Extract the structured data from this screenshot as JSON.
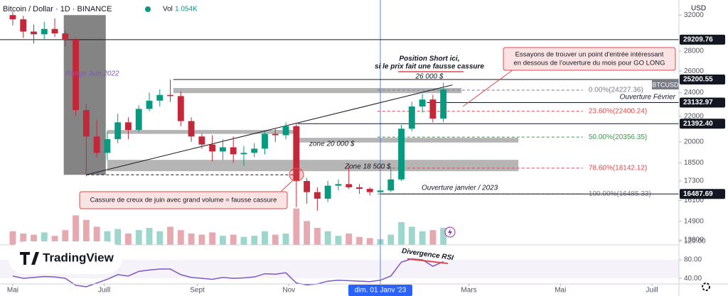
{
  "header": {
    "symbol": "Bitcoin / Dollar · 1D · BINANCE",
    "volume_label": "Vol",
    "volume_value": "1.054K",
    "currency": "USD",
    "brand": "TradingView"
  },
  "chart_data": {
    "type": "candlestick",
    "log_scale": true,
    "ylim": [
      13650,
      33840
    ],
    "yticks": [
      32000,
      28000,
      26000,
      24000,
      22000,
      20000,
      18500,
      17300,
      16100,
      14900,
      13900
    ],
    "xlim": [
      -8.5,
      444
    ],
    "xticks": [
      {
        "value": 0,
        "label": "Mai"
      },
      {
        "value": 61,
        "label": "Juill"
      },
      {
        "value": 123,
        "label": "Sept"
      },
      {
        "value": 184,
        "label": "Nov"
      },
      {
        "value": 245,
        "label": "dim. 01 Janv '23"
      },
      {
        "value": 304,
        "label": "Mars"
      },
      {
        "value": 365,
        "label": "Mai"
      },
      {
        "value": 426,
        "label": "Juill"
      }
    ],
    "crosshair_x": 245,
    "up_color": "#089981",
    "down_color": "#c2283a",
    "candles": {
      "x": [
        0,
        7,
        14,
        21,
        28,
        35,
        42,
        49,
        56,
        63,
        70,
        77,
        84,
        91,
        98,
        105,
        112,
        119,
        126,
        133,
        140,
        147,
        154,
        161,
        168,
        175,
        182,
        189,
        196,
        203,
        210,
        217,
        224,
        231,
        238,
        245,
        252,
        259,
        266,
        273,
        280,
        287
      ],
      "open": [
        32000,
        31500,
        30100,
        29800,
        30400,
        29900,
        29200,
        22500,
        20400,
        19200,
        20200,
        21500,
        20900,
        22600,
        23300,
        23800,
        23700,
        21600,
        20400,
        19800,
        19300,
        19600,
        19100,
        19200,
        19500,
        20600,
        20500,
        21200,
        17300,
        16600,
        16200,
        17000,
        17100,
        16900,
        16800,
        16600,
        16700,
        17400,
        21000,
        22800,
        23400,
        21800
      ],
      "high": [
        32400,
        31900,
        30900,
        31200,
        31600,
        30200,
        29400,
        23000,
        21700,
        20800,
        22200,
        21900,
        22900,
        24000,
        24300,
        25200,
        24100,
        21900,
        20600,
        20500,
        20200,
        20400,
        19700,
        19900,
        20800,
        21000,
        21500,
        21400,
        17500,
        16900,
        17300,
        17400,
        18300,
        17100,
        16900,
        17000,
        18200,
        21300,
        23200,
        23900,
        23800,
        24900
      ],
      "low": [
        30800,
        29400,
        28800,
        29200,
        29500,
        28500,
        22000,
        17600,
        18900,
        18700,
        19900,
        20200,
        20700,
        22400,
        22800,
        23200,
        21200,
        20000,
        19500,
        18600,
        18700,
        18500,
        18300,
        18900,
        19100,
        20000,
        20200,
        15700,
        15900,
        15500,
        16000,
        16700,
        16800,
        16500,
        16400,
        16500,
        16600,
        17300,
        20800,
        22300,
        21500,
        21500
      ],
      "close": [
        31500,
        30100,
        29800,
        30400,
        29900,
        29200,
        22500,
        20400,
        19200,
        20200,
        21500,
        20900,
        22600,
        23300,
        23800,
        23700,
        21600,
        20400,
        19800,
        19300,
        19600,
        19100,
        19200,
        19500,
        20600,
        20500,
        21200,
        17300,
        16600,
        16200,
        17000,
        17100,
        16900,
        16800,
        16600,
        16700,
        17400,
        21000,
        22800,
        23400,
        21800,
        24300
      ],
      "volume": [
        1.2,
        1.0,
        0.9,
        1.1,
        0.8,
        1.3,
        2.6,
        2.2,
        1.6,
        1.2,
        1.4,
        1.0,
        1.3,
        1.5,
        1.2,
        1.6,
        1.3,
        1.0,
        0.9,
        1.1,
        0.8,
        0.9,
        0.7,
        0.8,
        1.2,
        0.9,
        1.0,
        3.2,
        2.1,
        1.5,
        1.2,
        0.8,
        1.0,
        0.7,
        0.6,
        0.5,
        0.9,
        2.0,
        1.6,
        1.2,
        1.3,
        1.5
      ]
    },
    "volume_ylim": [
      0,
      5
    ],
    "symbol": "BTCUSD",
    "levels": [
      {
        "value": 29209.76,
        "label": "29209.76",
        "from": -8.5
      },
      {
        "value": 25200.55,
        "label": "25200.55",
        "from": 107
      },
      {
        "value": 23132.97,
        "label": "23132.97",
        "from": 276
      },
      {
        "value": 21392.4,
        "label": "21392.40",
        "from": 190
      },
      {
        "value": 16487.69,
        "label": "16487.69",
        "from": 245
      }
    ],
    "fib_x": [
      243,
      380
    ],
    "fib_levels": [
      {
        "value": 24227.36,
        "label": "0.00%(24227.36)",
        "color": "#787b86"
      },
      {
        "value": 22400.24,
        "label": "23.60%(22400.24)",
        "color": "#e04848"
      },
      {
        "value": 20356.35,
        "label": "50.00%(20356.35)",
        "color": "#3a9a4a"
      },
      {
        "value": 18142.12,
        "label": "78.60%(18142.12)",
        "color": "#e04848"
      },
      {
        "value": 16485.33,
        "label": "100.00%(16485.33)",
        "color": "#787b86"
      }
    ],
    "zones": [
      {
        "x": [
          34,
          62
        ],
        "y": [
          17700,
          32000
        ],
        "color": "rgba(80,80,80,0.7)"
      },
      {
        "x": [
          107,
          299
        ],
        "y": [
          23960,
          24420
        ],
        "color": "rgba(120,120,120,0.55)"
      },
      {
        "x": [
          63,
          190
        ],
        "y": [
          20600,
          20900
        ],
        "color": "rgba(120,120,120,0.55)"
      },
      {
        "x": [
          190,
          337
        ],
        "y": [
          19950,
          20300
        ],
        "color": "rgba(120,120,120,0.55)"
      },
      {
        "x": [
          63,
          337
        ],
        "y": [
          17940,
          18710
        ],
        "color": "rgba(120,120,120,0.55)"
      }
    ],
    "trendlines": [
      {
        "x": [
          49,
          293
        ],
        "y": [
          17700,
          24700
        ],
        "dash": false
      },
      {
        "x": [
          49,
          190
        ],
        "y": [
          17700,
          17700
        ],
        "dash": true
      }
    ],
    "annotations": [
      "Range Juin 2022",
      "zone 20 000 $",
      "Zone 18 500 $",
      "Ouverture janvier / 2023",
      "Ouverture Février",
      "Position Short ici,",
      "si le prix fait une fausse cassure",
      "26 000 $"
    ],
    "callouts": [
      "Essayons de trouver un point d'entrée intéressant",
      "en dessous de l'ouverture du mois pour GO LONG",
      "Cassure de creux de juin avec grand volume = fausse cassure"
    ],
    "rsi": {
      "values": [
        45,
        40,
        42,
        44,
        43,
        40,
        25,
        22,
        30,
        38,
        48,
        45,
        55,
        58,
        60,
        60,
        48,
        42,
        40,
        38,
        42,
        40,
        41,
        43,
        50,
        49,
        52,
        30,
        26,
        28,
        34,
        36,
        35,
        34,
        33,
        36,
        45,
        75,
        82,
        80,
        66,
        76
      ],
      "ylim": [
        28,
        112
      ],
      "yticks": [
        {
          "value": 120,
          "label": "120.00"
        },
        {
          "value": 80,
          "label": "80.00"
        },
        {
          "value": 40,
          "label": "40.00"
        }
      ],
      "color": "#7e57c2",
      "divergence": {
        "label": "Divergence RSI",
        "x": [
          263,
          290
        ],
        "y": [
          82,
          72
        ]
      }
    }
  }
}
